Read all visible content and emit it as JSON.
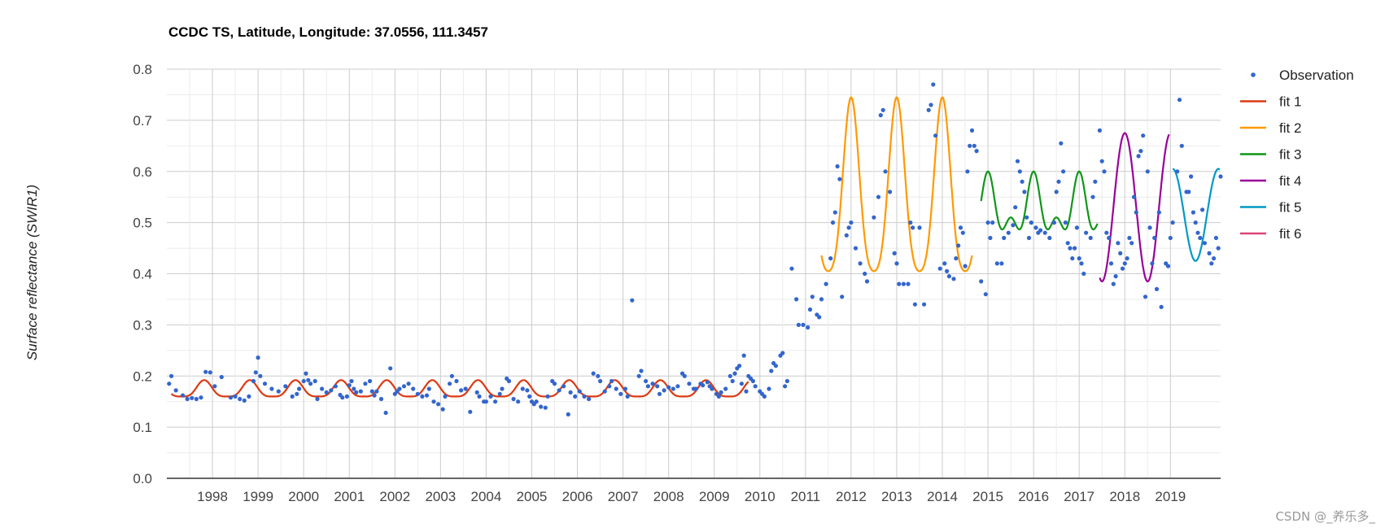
{
  "chart_data": {
    "type": "scatter",
    "title": "CCDC TS, Latitude, Longitude: 37.0556, 111.3457",
    "ylabel": "Surface reflectance (SWIR1)",
    "xlabel": "",
    "ylim": [
      0,
      0.8
    ],
    "xlim": [
      1997.0,
      2020.1
    ],
    "y_ticks": [
      "0.0",
      "0.1",
      "0.2",
      "0.3",
      "0.4",
      "0.5",
      "0.6",
      "0.7",
      "0.8"
    ],
    "x_ticks": [
      "1998",
      "1999",
      "2000",
      "2001",
      "2002",
      "2003",
      "2004",
      "2005",
      "2006",
      "2007",
      "2008",
      "2009",
      "2010",
      "2011",
      "2012",
      "2013",
      "2014",
      "2015",
      "2016",
      "2017",
      "2018",
      "2019"
    ],
    "grid": true,
    "legend_position": "right",
    "colors": {
      "observation": "#3366cc",
      "fit1": "#dc3912",
      "fit2": "#ff9900",
      "fit3": "#109618",
      "fit4": "#990099",
      "fit5": "#0099c6",
      "fit6": "#dd4477"
    },
    "legend": [
      {
        "label": "Observation",
        "kind": "point",
        "color": "#3366cc"
      },
      {
        "label": "fit 1",
        "kind": "line",
        "color": "#dc3912"
      },
      {
        "label": "fit 2",
        "kind": "line",
        "color": "#ff9900"
      },
      {
        "label": "fit 3",
        "kind": "line",
        "color": "#109618"
      },
      {
        "label": "fit 4",
        "kind": "line",
        "color": "#990099"
      },
      {
        "label": "fit 5",
        "kind": "line",
        "color": "#0099c6"
      },
      {
        "label": "fit 6",
        "kind": "line",
        "color": "#dd4477"
      }
    ],
    "observations": [
      [
        1997.05,
        0.185
      ],
      [
        1997.1,
        0.2
      ],
      [
        1997.2,
        0.172
      ],
      [
        1997.35,
        0.162
      ],
      [
        1997.45,
        0.155
      ],
      [
        1997.55,
        0.157
      ],
      [
        1997.65,
        0.155
      ],
      [
        1997.75,
        0.158
      ],
      [
        1997.85,
        0.208
      ],
      [
        1997.95,
        0.207
      ],
      [
        1998.05,
        0.18
      ],
      [
        1998.2,
        0.198
      ],
      [
        1998.4,
        0.158
      ],
      [
        1998.5,
        0.16
      ],
      [
        1998.6,
        0.155
      ],
      [
        1998.7,
        0.152
      ],
      [
        1998.8,
        0.16
      ],
      [
        1998.9,
        0.19
      ],
      [
        1998.95,
        0.207
      ],
      [
        1999.0,
        0.236
      ],
      [
        1999.05,
        0.2
      ],
      [
        1999.15,
        0.185
      ],
      [
        1999.3,
        0.175
      ],
      [
        1999.45,
        0.17
      ],
      [
        1999.6,
        0.18
      ],
      [
        1999.75,
        0.16
      ],
      [
        1999.85,
        0.165
      ],
      [
        1999.9,
        0.175
      ],
      [
        2000.0,
        0.19
      ],
      [
        2000.05,
        0.205
      ],
      [
        2000.1,
        0.192
      ],
      [
        2000.15,
        0.185
      ],
      [
        2000.25,
        0.19
      ],
      [
        2000.3,
        0.155
      ],
      [
        2000.4,
        0.175
      ],
      [
        2000.5,
        0.168
      ],
      [
        2000.6,
        0.172
      ],
      [
        2000.7,
        0.18
      ],
      [
        2000.8,
        0.163
      ],
      [
        2000.85,
        0.158
      ],
      [
        2000.95,
        0.16
      ],
      [
        2001.0,
        0.182
      ],
      [
        2001.05,
        0.19
      ],
      [
        2001.1,
        0.175
      ],
      [
        2001.15,
        0.168
      ],
      [
        2001.25,
        0.17
      ],
      [
        2001.35,
        0.185
      ],
      [
        2001.45,
        0.19
      ],
      [
        2001.5,
        0.17
      ],
      [
        2001.55,
        0.162
      ],
      [
        2001.6,
        0.17
      ],
      [
        2001.7,
        0.155
      ],
      [
        2001.8,
        0.128
      ],
      [
        2001.9,
        0.215
      ],
      [
        2002.0,
        0.165
      ],
      [
        2002.05,
        0.17
      ],
      [
        2002.1,
        0.175
      ],
      [
        2002.2,
        0.18
      ],
      [
        2002.3,
        0.185
      ],
      [
        2002.4,
        0.175
      ],
      [
        2002.5,
        0.165
      ],
      [
        2002.6,
        0.16
      ],
      [
        2002.7,
        0.162
      ],
      [
        2002.75,
        0.175
      ],
      [
        2002.85,
        0.15
      ],
      [
        2002.95,
        0.145
      ],
      [
        2003.05,
        0.135
      ],
      [
        2003.1,
        0.16
      ],
      [
        2003.2,
        0.185
      ],
      [
        2003.25,
        0.2
      ],
      [
        2003.35,
        0.19
      ],
      [
        2003.45,
        0.172
      ],
      [
        2003.55,
        0.175
      ],
      [
        2003.65,
        0.13
      ],
      [
        2003.8,
        0.168
      ],
      [
        2003.85,
        0.16
      ],
      [
        2003.95,
        0.15
      ],
      [
        2004.0,
        0.15
      ],
      [
        2004.1,
        0.16
      ],
      [
        2004.2,
        0.15
      ],
      [
        2004.3,
        0.165
      ],
      [
        2004.35,
        0.175
      ],
      [
        2004.45,
        0.195
      ],
      [
        2004.5,
        0.19
      ],
      [
        2004.6,
        0.155
      ],
      [
        2004.7,
        0.15
      ],
      [
        2004.8,
        0.175
      ],
      [
        2004.9,
        0.172
      ],
      [
        2004.95,
        0.16
      ],
      [
        2005.0,
        0.15
      ],
      [
        2005.05,
        0.145
      ],
      [
        2005.1,
        0.15
      ],
      [
        2005.2,
        0.14
      ],
      [
        2005.3,
        0.138
      ],
      [
        2005.35,
        0.16
      ],
      [
        2005.45,
        0.19
      ],
      [
        2005.5,
        0.185
      ],
      [
        2005.6,
        0.172
      ],
      [
        2005.7,
        0.18
      ],
      [
        2005.8,
        0.125
      ],
      [
        2005.85,
        0.168
      ],
      [
        2005.95,
        0.16
      ],
      [
        2006.05,
        0.17
      ],
      [
        2006.15,
        0.16
      ],
      [
        2006.25,
        0.155
      ],
      [
        2006.35,
        0.205
      ],
      [
        2006.45,
        0.2
      ],
      [
        2006.5,
        0.19
      ],
      [
        2006.6,
        0.17
      ],
      [
        2006.7,
        0.18
      ],
      [
        2006.75,
        0.19
      ],
      [
        2006.85,
        0.175
      ],
      [
        2006.95,
        0.165
      ],
      [
        2007.05,
        0.175
      ],
      [
        2007.1,
        0.16
      ],
      [
        2007.2,
        0.348
      ],
      [
        2007.35,
        0.2
      ],
      [
        2007.4,
        0.21
      ],
      [
        2007.5,
        0.19
      ],
      [
        2007.55,
        0.18
      ],
      [
        2007.65,
        0.185
      ],
      [
        2007.75,
        0.18
      ],
      [
        2007.8,
        0.165
      ],
      [
        2007.9,
        0.172
      ],
      [
        2008.0,
        0.178
      ],
      [
        2008.1,
        0.175
      ],
      [
        2008.2,
        0.18
      ],
      [
        2008.3,
        0.205
      ],
      [
        2008.35,
        0.2
      ],
      [
        2008.45,
        0.185
      ],
      [
        2008.55,
        0.175
      ],
      [
        2008.6,
        0.175
      ],
      [
        2008.7,
        0.185
      ],
      [
        2008.75,
        0.182
      ],
      [
        2008.85,
        0.188
      ],
      [
        2008.9,
        0.18
      ],
      [
        2008.95,
        0.175
      ],
      [
        2009.05,
        0.165
      ],
      [
        2009.1,
        0.16
      ],
      [
        2009.15,
        0.168
      ],
      [
        2009.25,
        0.175
      ],
      [
        2009.35,
        0.2
      ],
      [
        2009.4,
        0.19
      ],
      [
        2009.45,
        0.205
      ],
      [
        2009.5,
        0.215
      ],
      [
        2009.55,
        0.22
      ],
      [
        2009.6,
        0.185
      ],
      [
        2009.65,
        0.24
      ],
      [
        2009.7,
        0.17
      ],
      [
        2009.75,
        0.2
      ],
      [
        2009.8,
        0.195
      ],
      [
        2009.85,
        0.19
      ],
      [
        2009.9,
        0.18
      ],
      [
        2010.0,
        0.17
      ],
      [
        2010.05,
        0.165
      ],
      [
        2010.1,
        0.16
      ],
      [
        2010.2,
        0.175
      ],
      [
        2010.25,
        0.21
      ],
      [
        2010.3,
        0.225
      ],
      [
        2010.35,
        0.22
      ],
      [
        2010.45,
        0.24
      ],
      [
        2010.5,
        0.245
      ],
      [
        2010.55,
        0.18
      ],
      [
        2010.6,
        0.19
      ],
      [
        2010.7,
        0.41
      ],
      [
        2010.8,
        0.35
      ],
      [
        2010.85,
        0.3
      ],
      [
        2010.95,
        0.3
      ],
      [
        2011.05,
        0.295
      ],
      [
        2011.1,
        0.33
      ],
      [
        2011.15,
        0.355
      ],
      [
        2011.25,
        0.32
      ],
      [
        2011.3,
        0.315
      ],
      [
        2011.35,
        0.35
      ],
      [
        2011.45,
        0.38
      ],
      [
        2011.55,
        0.43
      ],
      [
        2011.6,
        0.5
      ],
      [
        2011.65,
        0.52
      ],
      [
        2011.7,
        0.61
      ],
      [
        2011.75,
        0.585
      ],
      [
        2011.8,
        0.355
      ],
      [
        2011.9,
        0.475
      ],
      [
        2011.95,
        0.49
      ],
      [
        2012.0,
        0.5
      ],
      [
        2012.1,
        0.45
      ],
      [
        2012.2,
        0.42
      ],
      [
        2012.3,
        0.4
      ],
      [
        2012.35,
        0.385
      ],
      [
        2012.5,
        0.51
      ],
      [
        2012.6,
        0.55
      ],
      [
        2012.65,
        0.71
      ],
      [
        2012.7,
        0.72
      ],
      [
        2012.75,
        0.6
      ],
      [
        2012.85,
        0.56
      ],
      [
        2012.95,
        0.44
      ],
      [
        2013.0,
        0.42
      ],
      [
        2013.05,
        0.38
      ],
      [
        2013.15,
        0.38
      ],
      [
        2013.25,
        0.38
      ],
      [
        2013.3,
        0.5
      ],
      [
        2013.35,
        0.49
      ],
      [
        2013.4,
        0.34
      ],
      [
        2013.5,
        0.49
      ],
      [
        2013.6,
        0.34
      ],
      [
        2013.7,
        0.72
      ],
      [
        2013.75,
        0.73
      ],
      [
        2013.8,
        0.77
      ],
      [
        2013.85,
        0.67
      ],
      [
        2013.95,
        0.41
      ],
      [
        2014.05,
        0.42
      ],
      [
        2014.1,
        0.405
      ],
      [
        2014.15,
        0.395
      ],
      [
        2014.25,
        0.39
      ],
      [
        2014.3,
        0.43
      ],
      [
        2014.35,
        0.455
      ],
      [
        2014.4,
        0.49
      ],
      [
        2014.45,
        0.48
      ],
      [
        2014.5,
        0.415
      ],
      [
        2014.55,
        0.6
      ],
      [
        2014.6,
        0.65
      ],
      [
        2014.65,
        0.68
      ],
      [
        2014.7,
        0.65
      ],
      [
        2014.75,
        0.64
      ],
      [
        2014.85,
        0.385
      ],
      [
        2014.95,
        0.36
      ],
      [
        2015.0,
        0.5
      ],
      [
        2015.05,
        0.47
      ],
      [
        2015.1,
        0.5
      ],
      [
        2015.2,
        0.42
      ],
      [
        2015.3,
        0.42
      ],
      [
        2015.35,
        0.47
      ],
      [
        2015.45,
        0.48
      ],
      [
        2015.55,
        0.495
      ],
      [
        2015.6,
        0.53
      ],
      [
        2015.65,
        0.62
      ],
      [
        2015.7,
        0.6
      ],
      [
        2015.75,
        0.58
      ],
      [
        2015.8,
        0.56
      ],
      [
        2015.85,
        0.51
      ],
      [
        2015.9,
        0.47
      ],
      [
        2015.95,
        0.5
      ],
      [
        2016.05,
        0.49
      ],
      [
        2016.1,
        0.48
      ],
      [
        2016.15,
        0.485
      ],
      [
        2016.25,
        0.48
      ],
      [
        2016.35,
        0.47
      ],
      [
        2016.45,
        0.5
      ],
      [
        2016.5,
        0.56
      ],
      [
        2016.55,
        0.58
      ],
      [
        2016.6,
        0.655
      ],
      [
        2016.65,
        0.6
      ],
      [
        2016.7,
        0.5
      ],
      [
        2016.75,
        0.46
      ],
      [
        2016.8,
        0.45
      ],
      [
        2016.85,
        0.43
      ],
      [
        2016.9,
        0.45
      ],
      [
        2016.95,
        0.49
      ],
      [
        2017.0,
        0.43
      ],
      [
        2017.05,
        0.42
      ],
      [
        2017.1,
        0.4
      ],
      [
        2017.15,
        0.48
      ],
      [
        2017.25,
        0.47
      ],
      [
        2017.3,
        0.55
      ],
      [
        2017.35,
        0.58
      ],
      [
        2017.45,
        0.68
      ],
      [
        2017.5,
        0.62
      ],
      [
        2017.55,
        0.6
      ],
      [
        2017.6,
        0.48
      ],
      [
        2017.65,
        0.47
      ],
      [
        2017.7,
        0.42
      ],
      [
        2017.75,
        0.38
      ],
      [
        2017.8,
        0.395
      ],
      [
        2017.85,
        0.46
      ],
      [
        2017.9,
        0.44
      ],
      [
        2017.95,
        0.41
      ],
      [
        2018.0,
        0.42
      ],
      [
        2018.05,
        0.43
      ],
      [
        2018.1,
        0.47
      ],
      [
        2018.15,
        0.46
      ],
      [
        2018.2,
        0.55
      ],
      [
        2018.25,
        0.52
      ],
      [
        2018.3,
        0.63
      ],
      [
        2018.35,
        0.64
      ],
      [
        2018.4,
        0.67
      ],
      [
        2018.45,
        0.355
      ],
      [
        2018.5,
        0.6
      ],
      [
        2018.55,
        0.49
      ],
      [
        2018.6,
        0.42
      ],
      [
        2018.65,
        0.47
      ],
      [
        2018.7,
        0.37
      ],
      [
        2018.75,
        0.52
      ],
      [
        2018.8,
        0.335
      ],
      [
        2018.9,
        0.42
      ],
      [
        2018.95,
        0.415
      ],
      [
        2019.0,
        0.47
      ],
      [
        2019.05,
        0.5
      ],
      [
        2019.15,
        0.6
      ],
      [
        2019.2,
        0.74
      ],
      [
        2019.25,
        0.65
      ],
      [
        2019.35,
        0.56
      ],
      [
        2019.4,
        0.56
      ],
      [
        2019.45,
        0.59
      ],
      [
        2019.5,
        0.52
      ],
      [
        2019.55,
        0.5
      ],
      [
        2019.6,
        0.48
      ],
      [
        2019.65,
        0.47
      ],
      [
        2019.7,
        0.525
      ],
      [
        2019.75,
        0.46
      ],
      [
        2019.85,
        0.44
      ],
      [
        2019.9,
        0.42
      ],
      [
        2019.95,
        0.43
      ],
      [
        2020.0,
        0.47
      ],
      [
        2020.05,
        0.45
      ],
      [
        2020.1,
        0.59
      ]
    ],
    "fits": [
      {
        "name": "fit 1",
        "color": "#dc3912",
        "x_range": [
          1997.1,
          2009.75
        ],
        "mean": 0.172,
        "amplitude": 0.016,
        "amplitude2": 0.004,
        "phase": 0.82
      },
      {
        "name": "fit 2",
        "color": "#ff9900",
        "x_range": [
          2011.35,
          2014.65
        ],
        "mean": 0.545,
        "amplitude": 0.17,
        "amplitude2": 0.03,
        "phase": 0.0
      },
      {
        "name": "fit 3",
        "color": "#109618",
        "x_range": [
          2014.85,
          2017.4
        ],
        "mean": 0.525,
        "amplitude": 0.045,
        "amplitude2": 0.03,
        "phase": 0.0
      },
      {
        "name": "fit 4",
        "color": "#990099",
        "x_range": [
          2017.45,
          2018.97
        ],
        "mean": 0.53,
        "amplitude": 0.145,
        "amplitude2": 0.0,
        "phase": 0.0
      },
      {
        "name": "fit 5",
        "color": "#0099c6",
        "x_range": [
          2019.05,
          2020.08
        ],
        "mean": 0.515,
        "amplitude": 0.09,
        "amplitude2": 0.0,
        "phase": 0.05
      },
      {
        "name": "fit 6",
        "color": "#dd4477",
        "x_range": [],
        "mean": 0,
        "amplitude": 0,
        "amplitude2": 0,
        "phase": 0
      }
    ]
  },
  "watermark": "CSDN @_养乐多_"
}
